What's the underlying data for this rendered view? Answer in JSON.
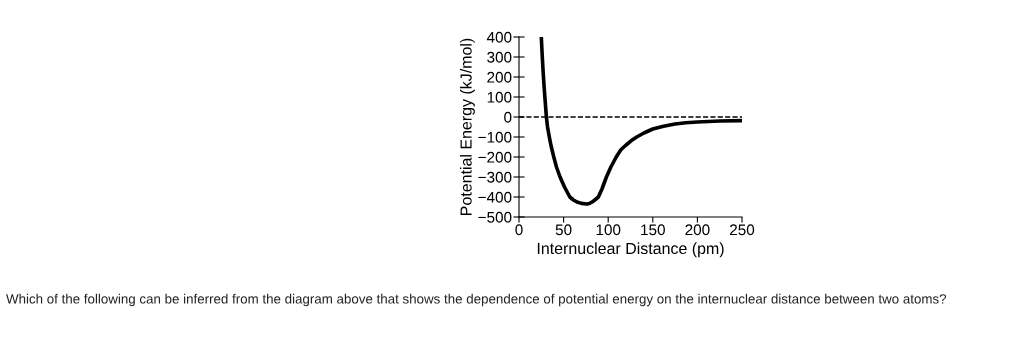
{
  "chart_data": {
    "type": "line",
    "xlabel": "Internuclear Distance (pm)",
    "ylabel": "Potential Energy (kJ/mol)",
    "x": [
      25,
      26,
      27,
      28,
      29,
      30.7,
      32,
      34,
      36,
      39,
      42,
      46,
      51,
      57,
      61,
      65,
      70,
      76,
      79,
      82,
      85,
      89,
      93,
      98,
      103,
      109,
      114,
      120,
      126,
      132,
      140,
      150,
      162,
      175,
      187,
      200,
      225,
      250
    ],
    "series": [
      {
        "color": "#000000",
        "values": [
          400,
          310,
          230,
          160,
          100,
          0,
          -50,
          -100,
          -145,
          -200,
          -250,
          -300,
          -350,
          -400,
          -415,
          -425,
          -432,
          -435,
          -432,
          -425,
          -415,
          -400,
          -360,
          -300,
          -250,
          -200,
          -165,
          -140,
          -118,
          -100,
          -80,
          -60,
          -46,
          -35,
          -29,
          -25,
          -20,
          -18
        ]
      }
    ],
    "xlim": [
      0,
      250
    ],
    "ylim": [
      -500,
      400
    ],
    "xticks": [
      0,
      50,
      100,
      150,
      200,
      250
    ],
    "yticks": [
      -500,
      -400,
      -300,
      -200,
      -100,
      0,
      100,
      200,
      300,
      400
    ],
    "ref_lines": [
      {
        "axis": "y",
        "value": 0,
        "color": "#000000",
        "line_style": "dashed"
      }
    ],
    "grid": false,
    "legend": false,
    "marker": "none",
    "line_style": "solid",
    "annotations": [
      "Which of the following can be inferred from the diagram above that shows the dependence of potential energy on the internuclear distance between two atoms?"
    ]
  }
}
